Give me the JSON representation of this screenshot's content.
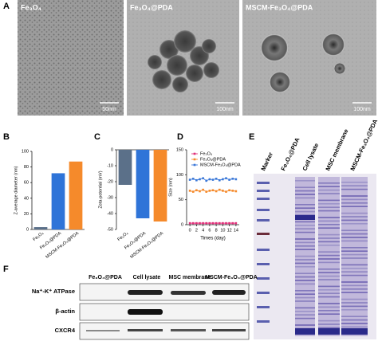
{
  "panel_labels": [
    "A",
    "B",
    "C",
    "D",
    "E",
    "F"
  ],
  "tem": {
    "labels": [
      "Fe₃O₄",
      "Fe₃O₄@PDA",
      "MSCM-Fe₃O₄@PDA"
    ],
    "scale_bars": [
      "50nm",
      "100nm",
      "100nm"
    ]
  },
  "chart_data": [
    {
      "type": "bar",
      "y_label": "Z-average diameter (nm)",
      "categories": [
        "Fe₃O₄",
        "Fe₃O₄@PDA",
        "MSCM-Fe₃O₄@PDA"
      ],
      "values": [
        3,
        72,
        87
      ],
      "colors": [
        "#5b7089",
        "#2f74d8",
        "#f58a2b"
      ],
      "ylim": [
        0,
        100
      ],
      "yticks": [
        0,
        20,
        40,
        60,
        80,
        100
      ]
    },
    {
      "type": "bar",
      "y_label": "Zeta-potential (mV)",
      "categories": [
        "Fe₃O₄",
        "Fe₃O₄@PDA",
        "MSCM-Fe₃O₄@PDA"
      ],
      "values": [
        -22,
        -43,
        -45
      ],
      "colors": [
        "#5b7089",
        "#2f74d8",
        "#f58a2b"
      ],
      "ylim": [
        -50,
        0
      ],
      "yticks": [
        0,
        -10,
        -20,
        -30,
        -40,
        -50
      ]
    },
    {
      "type": "line",
      "x_label": "Times (day)",
      "y_label": "Size (nm)",
      "x": [
        0,
        1,
        2,
        3,
        4,
        5,
        6,
        7,
        8,
        9,
        10,
        11,
        12,
        13,
        14
      ],
      "series": [
        {
          "name": "Fe₃O₄",
          "color": "#e0307a",
          "values": [
            3,
            3,
            3,
            3,
            3,
            3,
            3,
            3,
            3,
            3,
            3,
            3,
            3,
            3,
            3
          ]
        },
        {
          "name": "Fe₃O₄@PDA",
          "color": "#f58a2b",
          "values": [
            68,
            66,
            69,
            67,
            70,
            66,
            68,
            69,
            67,
            70,
            68,
            66,
            69,
            68,
            67
          ]
        },
        {
          "name": "MSCM-Fe₃O₄@PDA",
          "color": "#3b78d8",
          "values": [
            90,
            92,
            89,
            91,
            93,
            88,
            91,
            90,
            92,
            89,
            91,
            93,
            90,
            92,
            91
          ]
        }
      ],
      "xlim": [
        -1,
        15
      ],
      "xticks": [
        0,
        2,
        4,
        6,
        8,
        10,
        12,
        14
      ],
      "ylim": [
        0,
        150
      ],
      "yticks": [
        0,
        50,
        100,
        150
      ]
    }
  ],
  "gel": {
    "lanes": [
      "Marker",
      "Fe₃O₄@PDA",
      "Cell lysate",
      "MSC membrane",
      "MSCM-Fe₃O₄@PDA"
    ]
  },
  "blot": {
    "columns": [
      "Fe₃O₄@PDA",
      "Cell lysate",
      "MSC membrane",
      "MSCM-Fe₃O₄@PDA"
    ],
    "rows": [
      "Na⁺-K⁺ ATPase",
      "β-actin",
      "CXCR4"
    ]
  }
}
